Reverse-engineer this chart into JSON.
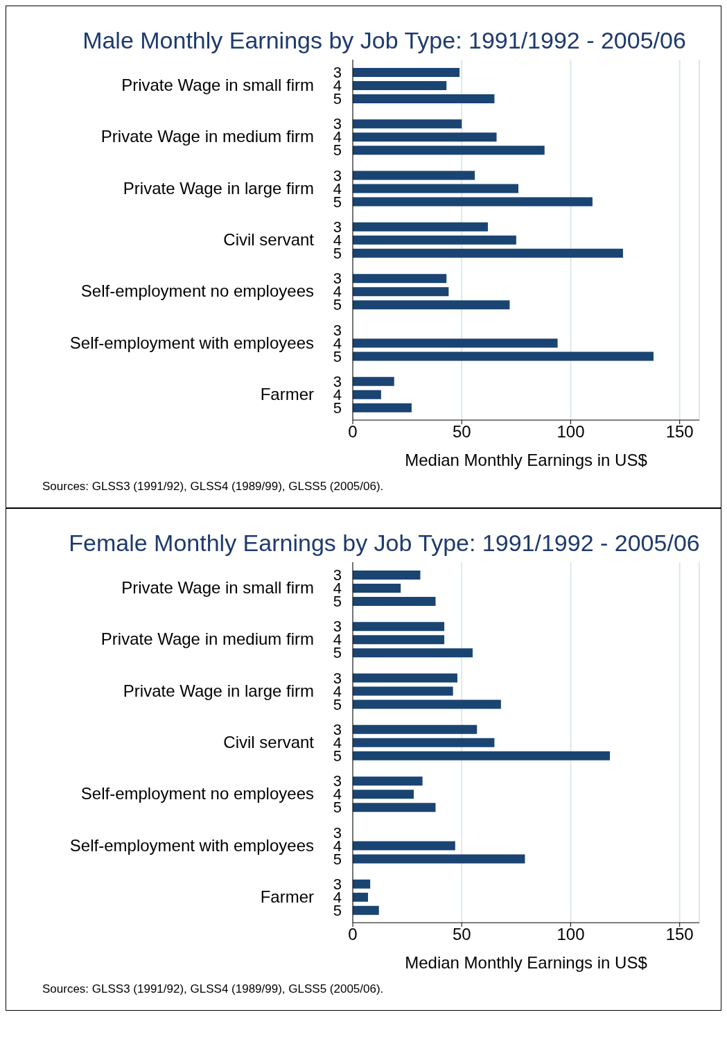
{
  "chart_data": [
    {
      "type": "bar",
      "orientation": "horizontal",
      "title": "Male Monthly Earnings by Job Type: 1991/1992 - 2005/06",
      "xlabel": "Median Monthly Earnings in US$",
      "categories": [
        "Private Wage in small firm",
        "Private Wage in medium firm",
        "Private Wage in large firm",
        "Civil servant",
        "Self-employment no employees",
        "Self-employment with employees",
        "Farmer"
      ],
      "series": [
        {
          "name": "3",
          "color": "#1a4472",
          "values": [
            49,
            50,
            56,
            62,
            43,
            null,
            19
          ]
        },
        {
          "name": "4",
          "color": "#1a4472",
          "values": [
            43,
            66,
            76,
            75,
            44,
            94,
            13
          ]
        },
        {
          "name": "5",
          "color": "#1a4472",
          "values": [
            65,
            88,
            110,
            124,
            72,
            138,
            27
          ]
        }
      ],
      "xlim": [
        0,
        159
      ],
      "xticks": [
        0,
        50,
        100,
        150
      ],
      "grid": "x",
      "annotations": [
        "Sources: GLSS3 (1991/92), GLSS4 (1989/99), GLSS5 (2005/06)."
      ]
    },
    {
      "type": "bar",
      "orientation": "horizontal",
      "title": "Female Monthly Earnings by Job Type: 1991/1992 - 2005/06",
      "xlabel": "Median Monthly Earnings in US$",
      "categories": [
        "Private Wage in small firm",
        "Private Wage in medium firm",
        "Private Wage in large firm",
        "Civil servant",
        "Self-employment no employees",
        "Self-employment with employees",
        "Farmer"
      ],
      "series": [
        {
          "name": "3",
          "color": "#1a4472",
          "values": [
            31,
            42,
            48,
            57,
            32,
            null,
            8
          ]
        },
        {
          "name": "4",
          "color": "#1a4472",
          "values": [
            22,
            42,
            46,
            65,
            28,
            47,
            7
          ]
        },
        {
          "name": "5",
          "color": "#1a4472",
          "values": [
            38,
            55,
            68,
            118,
            38,
            79,
            12
          ]
        }
      ],
      "xlim": [
        0,
        159
      ],
      "xticks": [
        0,
        50,
        100,
        150
      ],
      "grid": "x",
      "annotations": [
        "Sources: GLSS3 (1991/92), GLSS4 (1989/99), GLSS5 (2005/06)."
      ]
    }
  ]
}
